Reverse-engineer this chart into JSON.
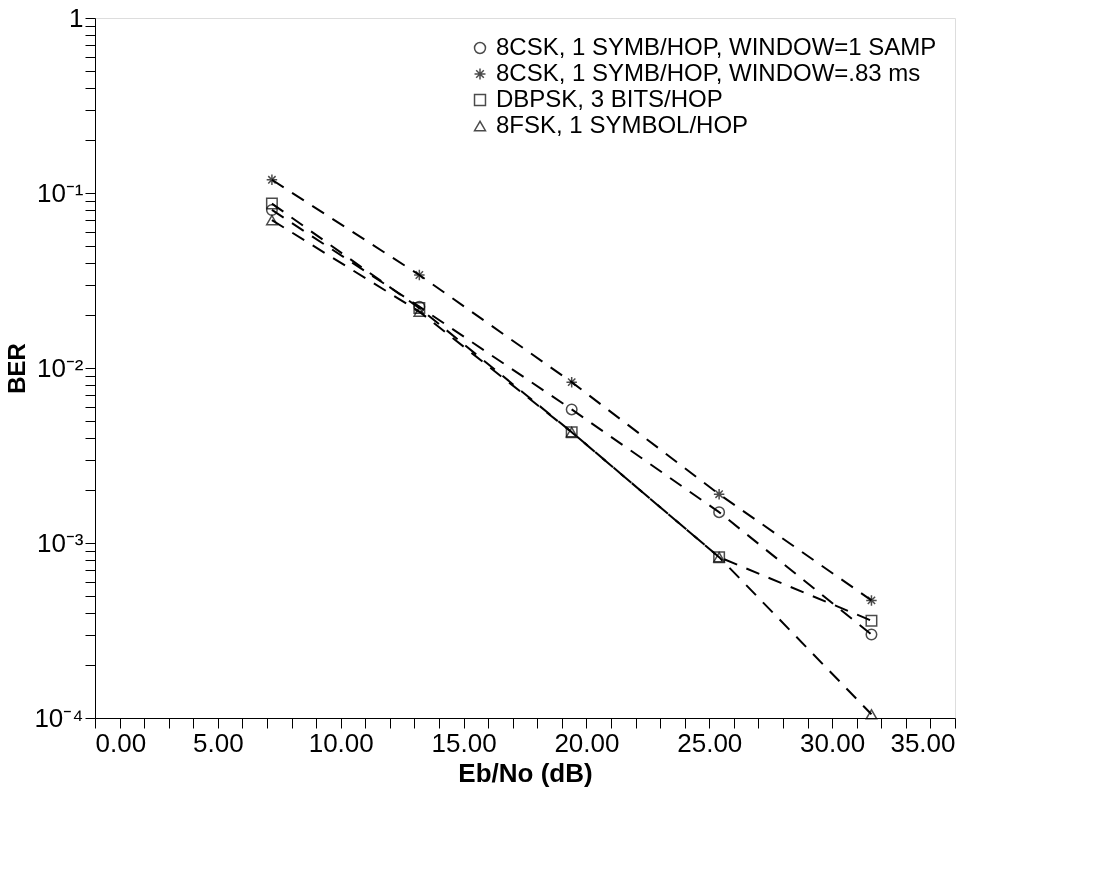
{
  "chart_data": {
    "type": "line",
    "xlabel": "Eb/No (dB)",
    "ylabel": "BER",
    "log": "y",
    "grid": false,
    "legend": "top right",
    "line_style": "dashed",
    "x": [
      7.2,
      13.2,
      19.4,
      25.4,
      31.6
    ],
    "series": [
      {
        "name": "8CSK, 1 SYMB/HOP, WINDOW=1 SAMP",
        "color": "#000000",
        "marker": "circle",
        "values": [
          0.08,
          0.0224,
          0.0058,
          0.0015,
          0.0003
        ]
      },
      {
        "name": "8CSK, 1 SYMB/HOP, WINDOW=.83 ms",
        "color": "#000000",
        "marker": "cross",
        "values": [
          0.119,
          0.034,
          0.0083,
          0.0019,
          0.00047
        ]
      },
      {
        "name": "DBPSK, 3 BITS/HOP",
        "color": "#000000",
        "marker": "square",
        "values": [
          0.087,
          0.022,
          0.0043,
          0.00083,
          0.00036
        ]
      },
      {
        "name": "8FSK, 1 SYMBOL/HOP",
        "color": "#000000",
        "marker": "triangle",
        "values": [
          0.07,
          0.021,
          0.0043,
          0.00083,
          0.000105
        ]
      }
    ],
    "xlim": [
      0,
      35
    ],
    "xticks": [
      {
        "value": 0,
        "label": "0.00"
      },
      {
        "value": 1,
        "label": null
      },
      {
        "value": 2,
        "label": null
      },
      {
        "value": 3,
        "label": null
      },
      {
        "value": 4,
        "label": null
      },
      {
        "value": 5,
        "label": "5.00"
      },
      {
        "value": 6,
        "label": null
      },
      {
        "value": 7,
        "label": null
      },
      {
        "value": 8,
        "label": null
      },
      {
        "value": 9,
        "label": null
      },
      {
        "value": 10,
        "label": "10.00"
      },
      {
        "value": 11,
        "label": null
      },
      {
        "value": 12,
        "label": null
      },
      {
        "value": 13,
        "label": null
      },
      {
        "value": 14,
        "label": null
      },
      {
        "value": 15,
        "label": "15.00"
      },
      {
        "value": 16,
        "label": null
      },
      {
        "value": 17,
        "label": null
      },
      {
        "value": 18,
        "label": null
      },
      {
        "value": 19,
        "label": null
      },
      {
        "value": 20,
        "label": "20.00"
      },
      {
        "value": 21,
        "label": null
      },
      {
        "value": 22,
        "label": null
      },
      {
        "value": 23,
        "label": null
      },
      {
        "value": 24,
        "label": null
      },
      {
        "value": 25,
        "label": "25.00"
      },
      {
        "value": 26,
        "label": null
      },
      {
        "value": 27,
        "label": null
      },
      {
        "value": 28,
        "label": null
      },
      {
        "value": 29,
        "label": null
      },
      {
        "value": 30,
        "label": "30.00"
      },
      {
        "value": 31,
        "label": null
      },
      {
        "value": 32,
        "label": null
      },
      {
        "value": 33,
        "label": null
      },
      {
        "value": 34,
        "label": null
      },
      {
        "value": 35,
        "label": "35.00"
      }
    ],
    "ylim": [
      0.0001,
      1
    ],
    "yticks": [
      {
        "value": 0.0001,
        "label": "10⁻⁴"
      },
      {
        "value": 0.0002,
        "label": null
      },
      {
        "value": 0.0003,
        "label": null
      },
      {
        "value": 0.0004,
        "label": null
      },
      {
        "value": 0.0005,
        "label": null
      },
      {
        "value": 0.0006,
        "label": null
      },
      {
        "value": 0.0007,
        "label": null
      },
      {
        "value": 0.0008,
        "label": null
      },
      {
        "value": 0.0009,
        "label": null
      },
      {
        "value": 0.001,
        "label": "10⁻³"
      },
      {
        "value": 0.002,
        "label": null
      },
      {
        "value": 0.003,
        "label": null
      },
      {
        "value": 0.004,
        "label": null
      },
      {
        "value": 0.005,
        "label": null
      },
      {
        "value": 0.006,
        "label": null
      },
      {
        "value": 0.007,
        "label": null
      },
      {
        "value": 0.008,
        "label": null
      },
      {
        "value": 0.009,
        "label": null
      },
      {
        "value": 0.01,
        "label": "10⁻²"
      },
      {
        "value": 0.02,
        "label": null
      },
      {
        "value": 0.03,
        "label": null
      },
      {
        "value": 0.04,
        "label": null
      },
      {
        "value": 0.05,
        "label": null
      },
      {
        "value": 0.06,
        "label": null
      },
      {
        "value": 0.07,
        "label": null
      },
      {
        "value": 0.08,
        "label": null
      },
      {
        "value": 0.09,
        "label": null
      },
      {
        "value": 0.1,
        "label": "10⁻¹"
      },
      {
        "value": 0.2,
        "label": null
      },
      {
        "value": 0.3,
        "label": null
      },
      {
        "value": 0.4,
        "label": null
      },
      {
        "value": 0.5,
        "label": null
      },
      {
        "value": 0.6,
        "label": null
      },
      {
        "value": 0.7,
        "label": null
      },
      {
        "value": 0.8,
        "label": null
      },
      {
        "value": 0.9,
        "label": null
      },
      {
        "value": 1,
        "label": "1"
      }
    ]
  }
}
